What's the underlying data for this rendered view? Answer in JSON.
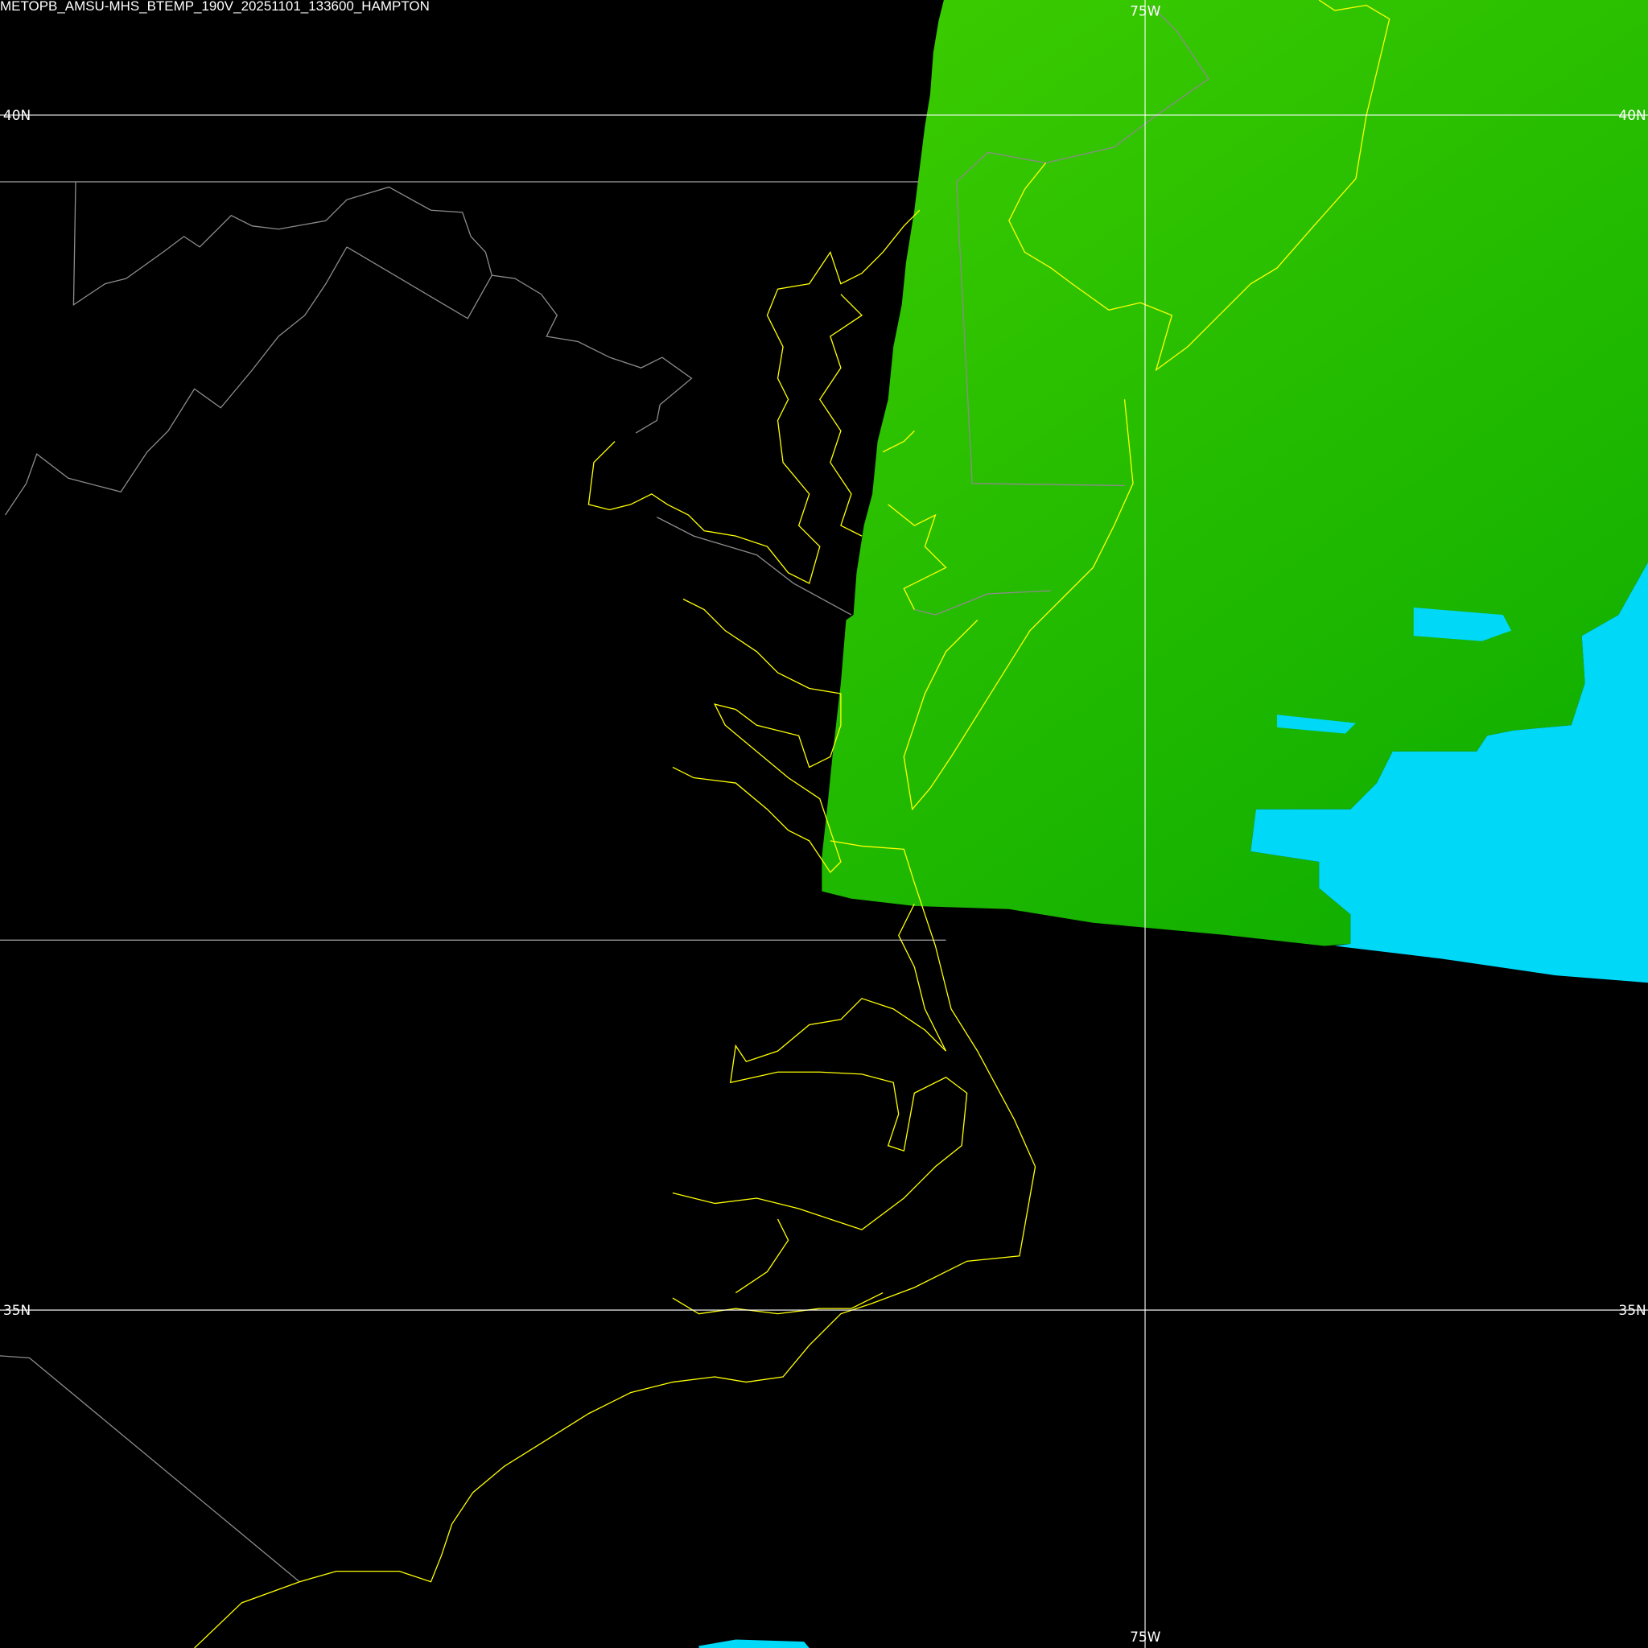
{
  "title": "METOPB_AMSU-MHS_BTEMP_190V_20251101_133600_HAMPTON",
  "grid": {
    "longitude_label": "75W",
    "latitude_labels": [
      "40N",
      "35N"
    ]
  },
  "colors": {
    "background": "#000000",
    "coastline": "#ffff00",
    "borders": "#8c8c8c",
    "gridlines": "#ffffff",
    "swath_green_light": "#3dcc00",
    "swath_green_dark": "#12b000",
    "swath_cyan": "#00d8f8"
  }
}
